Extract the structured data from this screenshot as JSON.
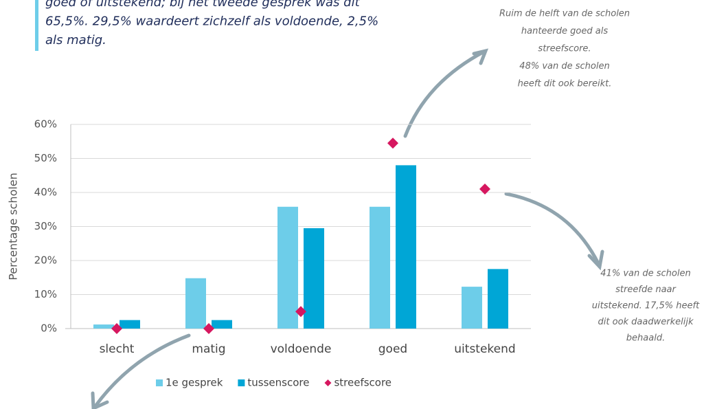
{
  "intro": {
    "lines": [
      "goed of uitstekend; bij het tweede gesprek was dit",
      "65,5%. 29,5% waardeert zichzelf als voldoende, 2,5%",
      "als matig."
    ]
  },
  "annotations": [
    {
      "lines": [
        "Ruim de helft van de scholen",
        "hanteerde goed als",
        "streefscore.",
        "48% van de scholen",
        "heeft dit ook bereikt."
      ]
    },
    {
      "lines": [
        "41% van de scholen",
        "streefde naar",
        "uitstekend. 17,5% heeft",
        "dit ook daadwerkelijk",
        "behaald."
      ]
    }
  ],
  "chart_data": {
    "type": "bar",
    "y_label": "Percentage scholen",
    "categories": [
      "slecht",
      "matig",
      "voldoende",
      "goed",
      "uitstekend"
    ],
    "series": [
      {
        "name": "1e gesprek",
        "color": "#6dcde9",
        "values": [
          1.2,
          14.8,
          35.8,
          35.8,
          12.3
        ]
      },
      {
        "name": "tussenscore",
        "color": "#00a6d6",
        "values": [
          2.5,
          2.5,
          29.5,
          48,
          17.5
        ]
      },
      {
        "name": "streefscore",
        "color": "#d6175f",
        "marker": "diamond",
        "values": [
          0,
          0,
          5,
          54.5,
          41
        ]
      }
    ],
    "ylim": [
      0,
      60
    ],
    "yticks": [
      {
        "value": 0,
        "label": "0%"
      },
      {
        "value": 10,
        "label": "10%"
      },
      {
        "value": 20,
        "label": "20%"
      },
      {
        "value": 30,
        "label": "30%"
      },
      {
        "value": 40,
        "label": "40%"
      },
      {
        "value": 50,
        "label": "50%"
      },
      {
        "value": 60,
        "label": "60%"
      }
    ],
    "grid": true,
    "legend": "bottom"
  }
}
